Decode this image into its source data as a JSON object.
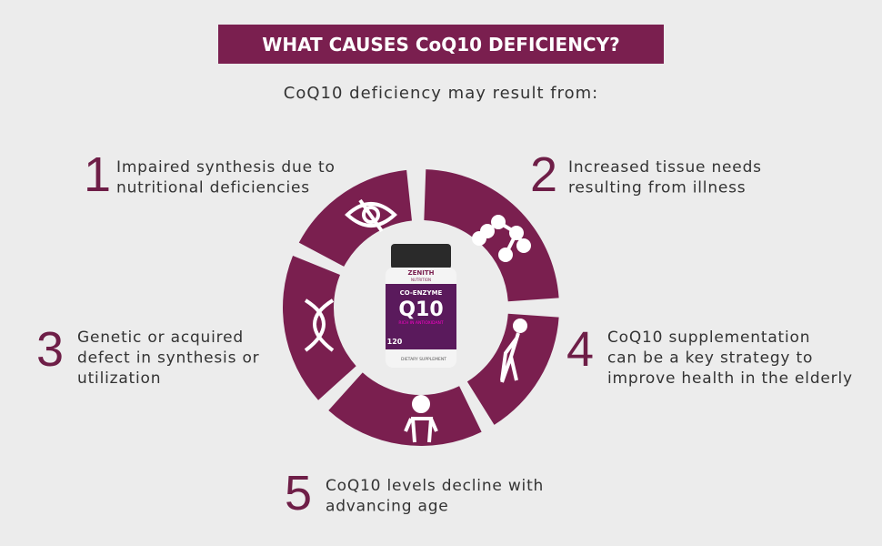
{
  "header": {
    "title": "WHAT CAUSES CoQ10 DEFICIENCY?",
    "subtitle": "CoQ10 deficiency may result from:"
  },
  "items": [
    {
      "number": "1",
      "lines": [
        "Impaired synthesis due to",
        "nutritional deficiencies"
      ]
    },
    {
      "number": "2",
      "lines": [
        "Increased tissue needs",
        "resulting from illness"
      ]
    },
    {
      "number": "3",
      "lines": [
        "Genetic or acquired",
        "defect in synthesis or",
        "utilization"
      ]
    },
    {
      "number": "4",
      "lines": [
        "CoQ10 supplementation",
        "can be a key strategy to",
        "improve health in the elderly"
      ]
    },
    {
      "number": "5",
      "lines": [
        "CoQ10 levels decline with",
        "advancing age"
      ]
    }
  ],
  "bottle": {
    "brand": "ZENITH",
    "brand_sub": "NUTRITION",
    "product": "CO-ENZYME",
    "name": "Q10",
    "claim": "RICH IN ANTIOXIDANT",
    "count": "120",
    "footer": "DIETARY SUPPLEMENT"
  }
}
